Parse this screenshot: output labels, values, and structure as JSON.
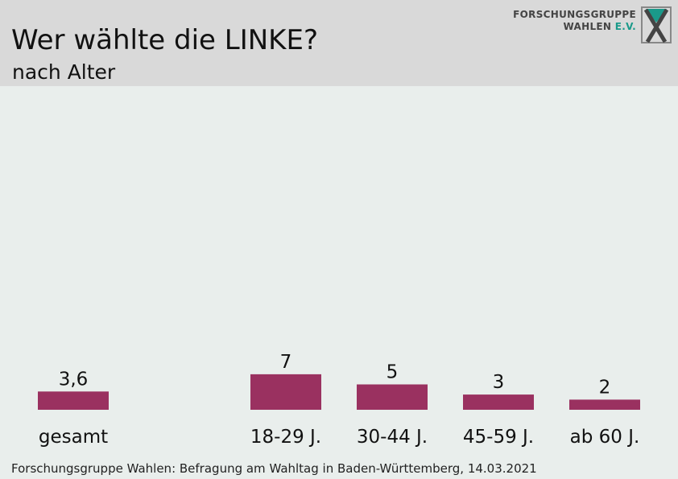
{
  "header": {
    "title": "Wer wählte die LINKE?",
    "subtitle": "nach Alter",
    "logo_line1": "FORSCHUNGSGRUPPE",
    "logo_line2": "WAHLEN",
    "logo_ev": "E.V.",
    "logo_icon": "x-logo-icon"
  },
  "footer": {
    "source": "Forschungsgruppe Wahlen: Befragung am Wahltag in Baden-Württemberg, 14.03.2021"
  },
  "colors": {
    "bar": "#9a3160",
    "header_bg": "#d9d9d9",
    "plot_bg": "#e9eeec",
    "logo_accent": "#1a9a8a"
  },
  "chart_data": {
    "type": "bar",
    "categories": [
      "gesamt",
      "18-29 J.",
      "30-44 J.",
      "45-59 J.",
      "ab 60 J."
    ],
    "values": [
      3.6,
      7,
      5,
      3,
      2
    ],
    "value_labels": [
      "3,6",
      "7",
      "5",
      "3",
      "2"
    ],
    "title": "Wer wählte die LINKE?",
    "subtitle": "nach Alter",
    "xlabel": "",
    "ylabel": "",
    "ylim": [
      0,
      30
    ],
    "grid": false,
    "legend": "none"
  }
}
